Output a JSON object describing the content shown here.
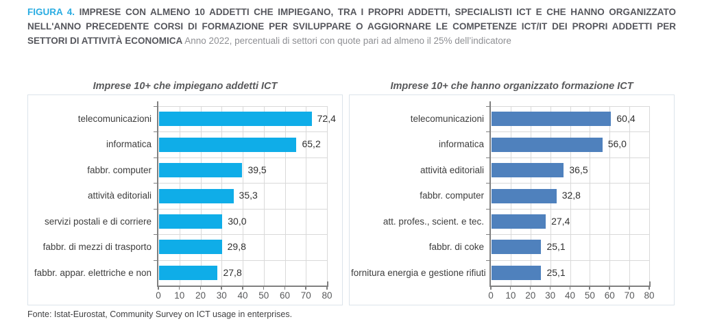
{
  "header": {
    "figure_label": "FIGURA 4.",
    "title": "IMPRESE CON ALMENO 10 ADDETTI CHE IMPIEGANO, TRA I PROPRI ADDETTI, SPECIALISTI ICT E CHE HANNO ORGANIZZATO NELL'ANNO PRECEDENTE CORSI DI FORMAZIONE PER SVILUPPARE O AGGIORNARE LE COMPETENZE ICT/IT DEI PROPRI ADDETTI PER SETTORI DI ATTIVITÀ ECONOMICA",
    "subtitle": "Anno 2022, percentuali di settori con quote pari ad almeno il 25% dell’indicatore"
  },
  "chart_data": [
    {
      "type": "bar",
      "orientation": "horizontal",
      "title": "Imprese 10+ che impiegano addetti ICT",
      "categories": [
        "telecomunicazioni",
        "informatica",
        "fabbr. computer",
        "attività editoriali",
        "servizi postali e di corriere",
        "fabbr. di mezzi di trasporto",
        "fabbr. appar. elettriche e non"
      ],
      "values": [
        72.4,
        65.2,
        39.5,
        35.3,
        30.0,
        29.8,
        27.8
      ],
      "value_labels": [
        "72,4",
        "65,2",
        "39,5",
        "35,3",
        "30,0",
        "29,8",
        "27,8"
      ],
      "xlim": [
        0,
        80
      ],
      "xticks": [
        0,
        10,
        20,
        30,
        40,
        50,
        60,
        70,
        80
      ],
      "bar_color": "#0FADE8",
      "grid": true,
      "legend": null
    },
    {
      "type": "bar",
      "orientation": "horizontal",
      "title": "Imprese 10+ che hanno organizzato formazione ICT",
      "categories": [
        "telecomunicazioni",
        "informatica",
        "attività editoriali",
        "fabbr. computer",
        "att. profes., scient. e tec.",
        "fabbr. di coke",
        "fornitura energia e gestione rifiuti"
      ],
      "values": [
        60.4,
        56.0,
        36.5,
        32.8,
        27.4,
        25.1,
        25.1
      ],
      "value_labels": [
        "60,4",
        "56,0",
        "36,5",
        "32,8",
        "27,4",
        "25,1",
        "25,1"
      ],
      "xlim": [
        0,
        80
      ],
      "xticks": [
        0,
        10,
        20,
        30,
        40,
        50,
        60,
        70,
        80
      ],
      "bar_color": "#4F81BD",
      "grid": true,
      "legend": null
    }
  ],
  "footer": {
    "source": "Fonte: Istat-Eurostat, Community Survey on ICT usage in enterprises."
  },
  "colors": {
    "figure_label_accent": "#29ACE2",
    "left_bars": "#0FADE8",
    "right_bars": "#4F81BD",
    "gridline": "#d9d9d9",
    "axis": "#7f7f7f"
  }
}
